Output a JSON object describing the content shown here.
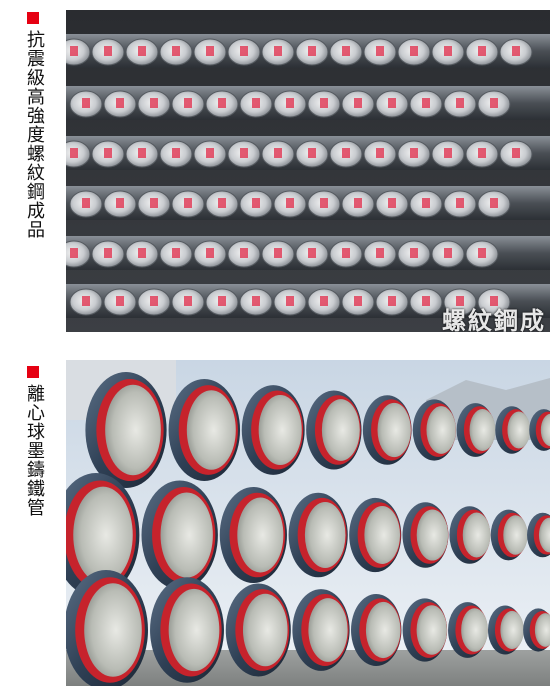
{
  "sections": [
    {
      "label": "抗震級高強度螺紋鋼成品",
      "marker_color": "#e60012",
      "photo_overlay_text": "螺紋鋼成"
    },
    {
      "label": "離心球墨鑄鐵管",
      "marker_color": "#e60012"
    }
  ]
}
